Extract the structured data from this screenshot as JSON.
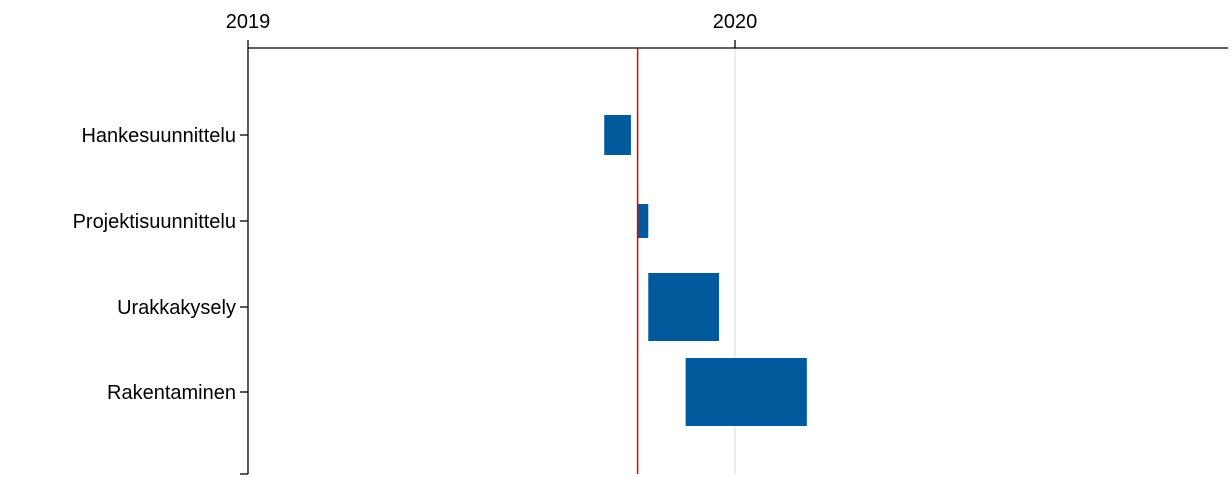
{
  "chart_data": {
    "type": "gantt",
    "x_axis": {
      "position": "top",
      "ticks": [
        "2019",
        "2020"
      ],
      "range": [
        "2019-01-01",
        "2020-12-31"
      ]
    },
    "gridlines": [
      {
        "date": "2020-01-01",
        "color": "#d9d9d9"
      }
    ],
    "today_marker": {
      "date": "2019-10-20",
      "color": "#e00000"
    },
    "bar_color": "#005a9c",
    "tasks": [
      {
        "label": "Hankesuunnittelu",
        "start": "2019-09-25",
        "end": "2019-10-15"
      },
      {
        "label": "Projektisuunnittelu",
        "start": "2019-10-20",
        "end": "2019-10-28"
      },
      {
        "label": "Urakkakysely",
        "start": "2019-10-28",
        "end": "2019-12-20"
      },
      {
        "label": "Rakentaminen",
        "start": "2019-11-25",
        "end": "2020-02-24"
      }
    ]
  }
}
